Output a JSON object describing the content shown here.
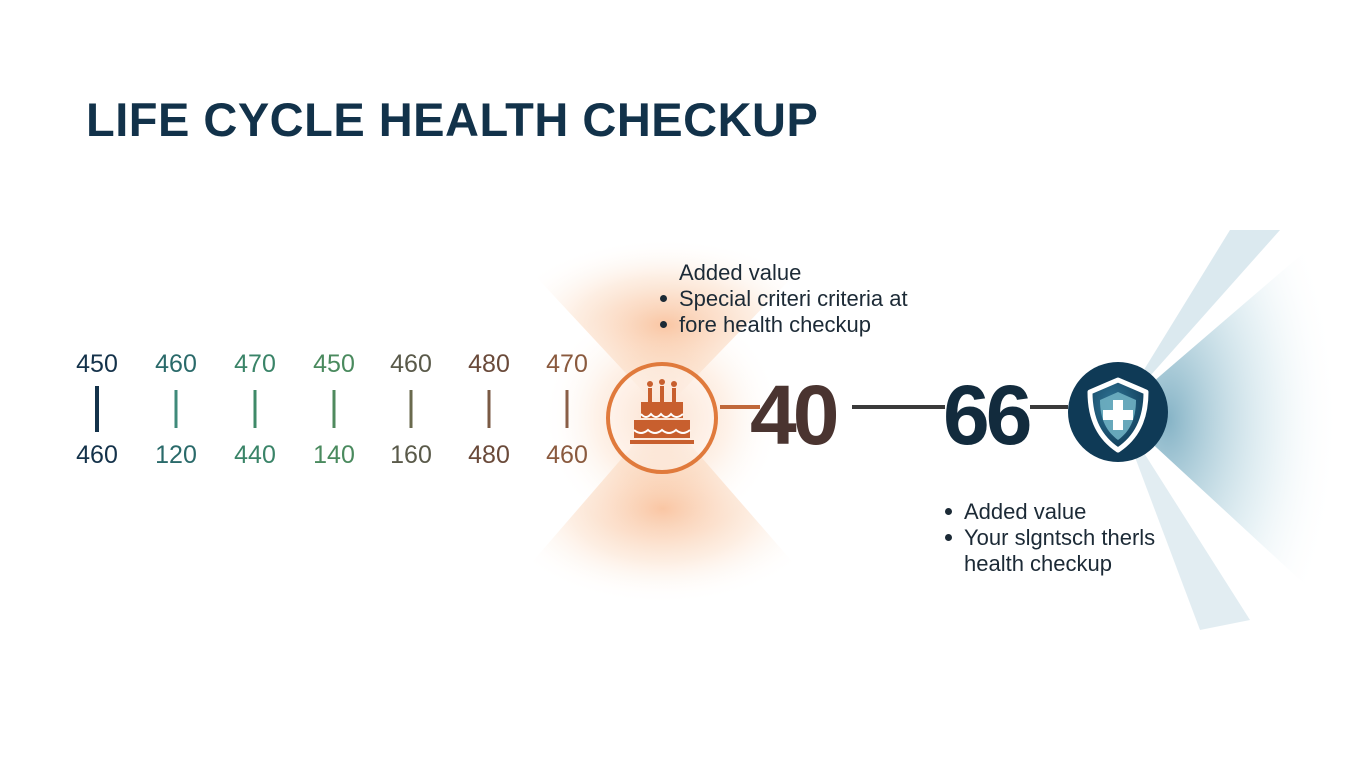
{
  "title": "LIFE CYCLE HEALTH CHECKUP",
  "colors": {
    "title": "#12324a",
    "orange_accent": "#e07a3c",
    "teal_accent": "#1f5f7e",
    "text_dark": "#1c2a36"
  },
  "timeline": {
    "top_labels": [
      "450",
      "460",
      "470",
      "450",
      "460",
      "480",
      "470"
    ],
    "bottom_labels": [
      "460",
      "120",
      "440",
      "140",
      "160",
      "480",
      "460"
    ],
    "label_colors": [
      "#14324a",
      "#2a6a6a",
      "#3a8468",
      "#4a8a5e",
      "#5a5a4a",
      "#6a4a3a",
      "#8a5a3e"
    ],
    "tick_colors": [
      "#14324a",
      "#3f8a7a",
      "#3f8a68",
      "#4f8a5e",
      "#6a6a4e",
      "#7a5a44",
      "#8a5e46"
    ]
  },
  "milestone_cake": {
    "icon": "birthday-cake-icon",
    "number": "40",
    "notes": {
      "heading": "Added value",
      "bullets": [
        "Special criteri criteria at",
        "fore health checkup"
      ]
    }
  },
  "milestone_shield": {
    "icon": "shield-plus-icon",
    "number": "66",
    "notes": {
      "lines": [
        "Added value",
        "Your slgntsch therls",
        "health checkup"
      ]
    }
  }
}
